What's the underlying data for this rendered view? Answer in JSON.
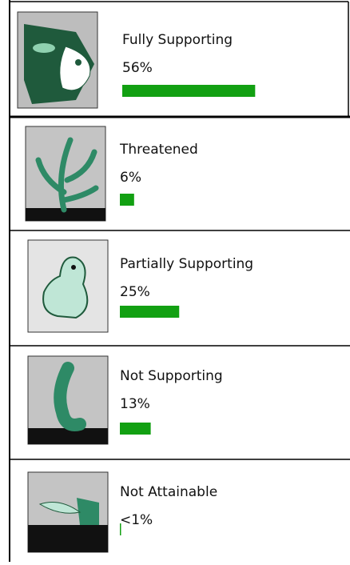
{
  "chart_data": {
    "type": "bar",
    "categories": [
      "Fully Supporting",
      "Threatened",
      "Partially Supporting",
      "Not Supporting",
      "Not Attainable"
    ],
    "values": [
      56,
      6,
      25,
      13,
      0.5
    ],
    "value_labels": [
      "56%",
      "6%",
      "25%",
      "13%",
      "<1%"
    ],
    "color": "#12a012"
  }
}
